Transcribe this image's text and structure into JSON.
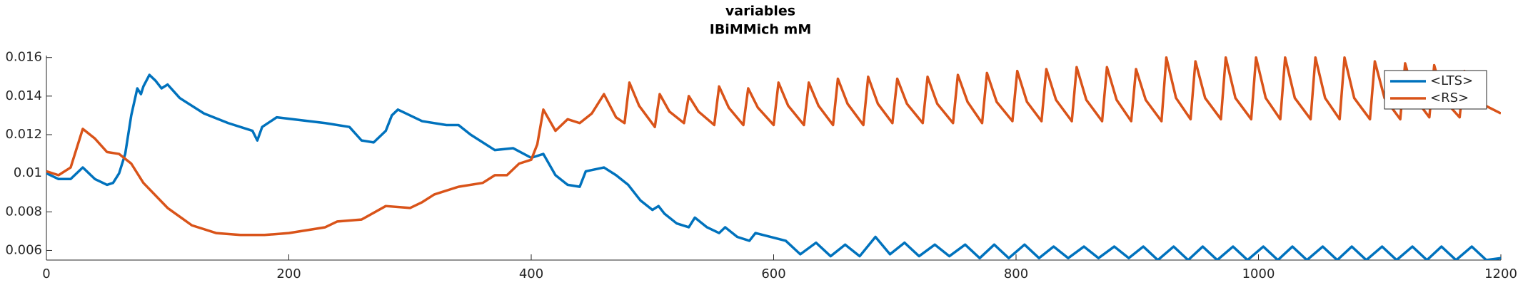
{
  "chart_data": {
    "type": "line",
    "title": "variables",
    "subtitle": "IBiMMich mM",
    "xlim": [
      0,
      1200
    ],
    "xticks": [
      0,
      200,
      400,
      600,
      800,
      1000,
      1200
    ],
    "ylim": [
      0.0055,
      0.0161
    ],
    "yticks": [
      0.006,
      0.008,
      0.01,
      0.012,
      0.014,
      0.016
    ],
    "grid": false,
    "legend": "northeast",
    "series": [
      {
        "name": "<LTS>",
        "color": "#0072bd",
        "x": [
          0,
          10,
          20,
          30,
          40,
          50,
          55,
          60,
          65,
          70,
          75,
          78,
          80,
          85,
          90,
          95,
          100,
          110,
          130,
          150,
          170,
          174,
          178,
          190,
          230,
          250,
          260,
          270,
          280,
          285,
          290,
          310,
          330,
          340,
          350,
          370,
          385,
          400,
          410,
          420,
          430,
          440,
          445,
          460,
          470,
          480,
          490,
          500,
          505,
          510,
          520,
          530,
          535,
          545,
          555,
          560,
          570,
          580,
          585,
          610,
          622,
          635,
          647,
          659,
          671,
          684,
          696,
          708,
          720,
          733,
          745,
          758,
          770,
          782,
          794,
          807,
          819,
          831,
          843,
          856,
          868,
          881,
          893,
          905,
          917,
          930,
          942,
          954,
          966,
          979,
          991,
          1004,
          1016,
          1028,
          1040,
          1053,
          1065,
          1077,
          1089,
          1102,
          1114,
          1127,
          1139,
          1151,
          1163,
          1176,
          1188,
          1200
        ],
        "values": [
          0.01,
          0.0097,
          0.0097,
          0.0103,
          0.0097,
          0.0094,
          0.0095,
          0.01,
          0.011,
          0.013,
          0.0144,
          0.0141,
          0.0145,
          0.0151,
          0.0148,
          0.0144,
          0.0146,
          0.0139,
          0.0131,
          0.0126,
          0.0122,
          0.0117,
          0.0124,
          0.0129,
          0.0126,
          0.0124,
          0.0117,
          0.0116,
          0.0122,
          0.013,
          0.0133,
          0.0127,
          0.0125,
          0.0125,
          0.012,
          0.0112,
          0.0113,
          0.0108,
          0.011,
          0.0099,
          0.0094,
          0.0093,
          0.0101,
          0.0103,
          0.0099,
          0.0094,
          0.0086,
          0.0081,
          0.0083,
          0.0079,
          0.0074,
          0.0072,
          0.0077,
          0.0072,
          0.0069,
          0.0072,
          0.0067,
          0.0065,
          0.0069,
          0.0065,
          0.0058,
          0.0064,
          0.0057,
          0.0063,
          0.0057,
          0.0067,
          0.0058,
          0.0064,
          0.0057,
          0.0063,
          0.0057,
          0.0063,
          0.0056,
          0.0063,
          0.0056,
          0.0063,
          0.0056,
          0.0062,
          0.0056,
          0.0062,
          0.0056,
          0.0062,
          0.0056,
          0.0062,
          0.0055,
          0.0062,
          0.0055,
          0.0062,
          0.0055,
          0.0062,
          0.0055,
          0.0062,
          0.0055,
          0.0062,
          0.0055,
          0.0062,
          0.0055,
          0.0062,
          0.0055,
          0.0062,
          0.0055,
          0.0062,
          0.0055,
          0.0062,
          0.0055,
          0.0062,
          0.0055,
          0.0056
        ]
      },
      {
        "name": "<RS>",
        "color": "#d95319",
        "x": [
          0,
          10,
          20,
          30,
          40,
          50,
          60,
          70,
          80,
          100,
          120,
          140,
          160,
          180,
          200,
          230,
          240,
          260,
          280,
          300,
          310,
          320,
          340,
          360,
          370,
          380,
          390,
          400,
          405,
          410,
          420,
          430,
          440,
          450,
          460,
          470,
          477,
          481,
          489,
          502,
          506,
          514,
          526,
          530,
          538,
          551,
          555,
          563,
          575,
          579,
          587,
          600,
          604,
          612,
          625,
          629,
          637,
          649,
          653,
          661,
          674,
          678,
          686,
          698,
          702,
          710,
          723,
          727,
          735,
          748,
          752,
          760,
          772,
          776,
          784,
          797,
          801,
          809,
          821,
          825,
          833,
          846,
          850,
          858,
          871,
          875,
          883,
          895,
          899,
          907,
          920,
          924,
          932,
          944,
          948,
          956,
          969,
          973,
          981,
          994,
          998,
          1006,
          1018,
          1022,
          1030,
          1043,
          1047,
          1055,
          1067,
          1071,
          1079,
          1092,
          1096,
          1104,
          1117,
          1121,
          1129,
          1141,
          1145,
          1153,
          1166,
          1170,
          1178,
          1200
        ],
        "values": [
          0.0101,
          0.0099,
          0.0103,
          0.0123,
          0.0118,
          0.0111,
          0.011,
          0.0105,
          0.0095,
          0.0082,
          0.0073,
          0.0069,
          0.0068,
          0.0068,
          0.0069,
          0.0072,
          0.0075,
          0.0076,
          0.0083,
          0.0082,
          0.0085,
          0.0089,
          0.0093,
          0.0095,
          0.0099,
          0.0099,
          0.0105,
          0.0107,
          0.0115,
          0.0133,
          0.0122,
          0.0128,
          0.0126,
          0.0131,
          0.0141,
          0.0129,
          0.0126,
          0.0147,
          0.0135,
          0.0124,
          0.0141,
          0.0132,
          0.0126,
          0.014,
          0.0132,
          0.0125,
          0.0145,
          0.0134,
          0.0125,
          0.0144,
          0.0134,
          0.0125,
          0.0147,
          0.0135,
          0.0125,
          0.0147,
          0.0135,
          0.0125,
          0.0149,
          0.0136,
          0.0125,
          0.015,
          0.0136,
          0.0126,
          0.0149,
          0.0136,
          0.0126,
          0.015,
          0.0136,
          0.0126,
          0.0151,
          0.0137,
          0.0126,
          0.0152,
          0.0137,
          0.0127,
          0.0153,
          0.0137,
          0.0127,
          0.0154,
          0.0138,
          0.0127,
          0.0155,
          0.0138,
          0.0127,
          0.0155,
          0.0138,
          0.0127,
          0.0154,
          0.0138,
          0.0127,
          0.016,
          0.0139,
          0.0128,
          0.0158,
          0.0139,
          0.0128,
          0.016,
          0.0139,
          0.0128,
          0.016,
          0.0139,
          0.0128,
          0.016,
          0.0139,
          0.0128,
          0.016,
          0.0139,
          0.0128,
          0.016,
          0.0139,
          0.0128,
          0.0158,
          0.0139,
          0.0128,
          0.0157,
          0.0139,
          0.0129,
          0.0156,
          0.0138,
          0.0129,
          0.0153,
          0.0138,
          0.0131
        ]
      }
    ]
  }
}
